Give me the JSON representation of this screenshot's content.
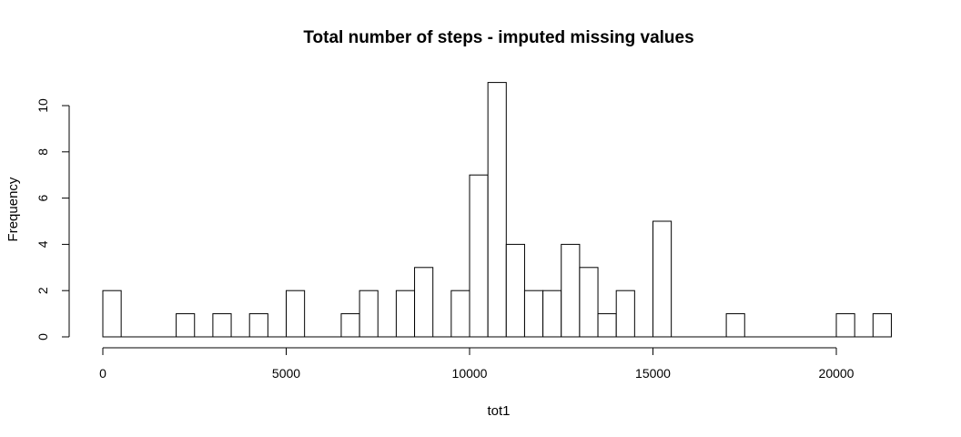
{
  "chart_data": {
    "type": "bar",
    "title": "Total number of steps - imputed missing values",
    "xlabel": "tot1",
    "ylabel": "Frequency",
    "bin_width": 500,
    "bin_starts": [
      0,
      2000,
      3000,
      4000,
      5000,
      6500,
      7000,
      8000,
      8500,
      9500,
      10000,
      10500,
      11000,
      11500,
      12000,
      12500,
      13000,
      13500,
      14000,
      15000,
      17000,
      20000,
      21000
    ],
    "values": [
      2,
      1,
      1,
      1,
      2,
      1,
      2,
      2,
      3,
      2,
      7,
      11,
      4,
      2,
      2,
      4,
      3,
      1,
      2,
      5,
      1,
      1,
      1
    ],
    "xlim": [
      0,
      21500
    ],
    "ylim": [
      0,
      11
    ],
    "x_ticks": [
      0,
      5000,
      10000,
      15000,
      20000
    ],
    "x_tick_labels": [
      "0",
      "5000",
      "10000",
      "15000",
      "20000"
    ],
    "y_ticks": [
      0,
      2,
      4,
      6,
      8,
      10
    ],
    "y_tick_labels": [
      "0",
      "2",
      "4",
      "6",
      "8",
      "10"
    ],
    "grid": false,
    "bar_fill": "#ffffff",
    "bar_stroke": "#000000"
  }
}
